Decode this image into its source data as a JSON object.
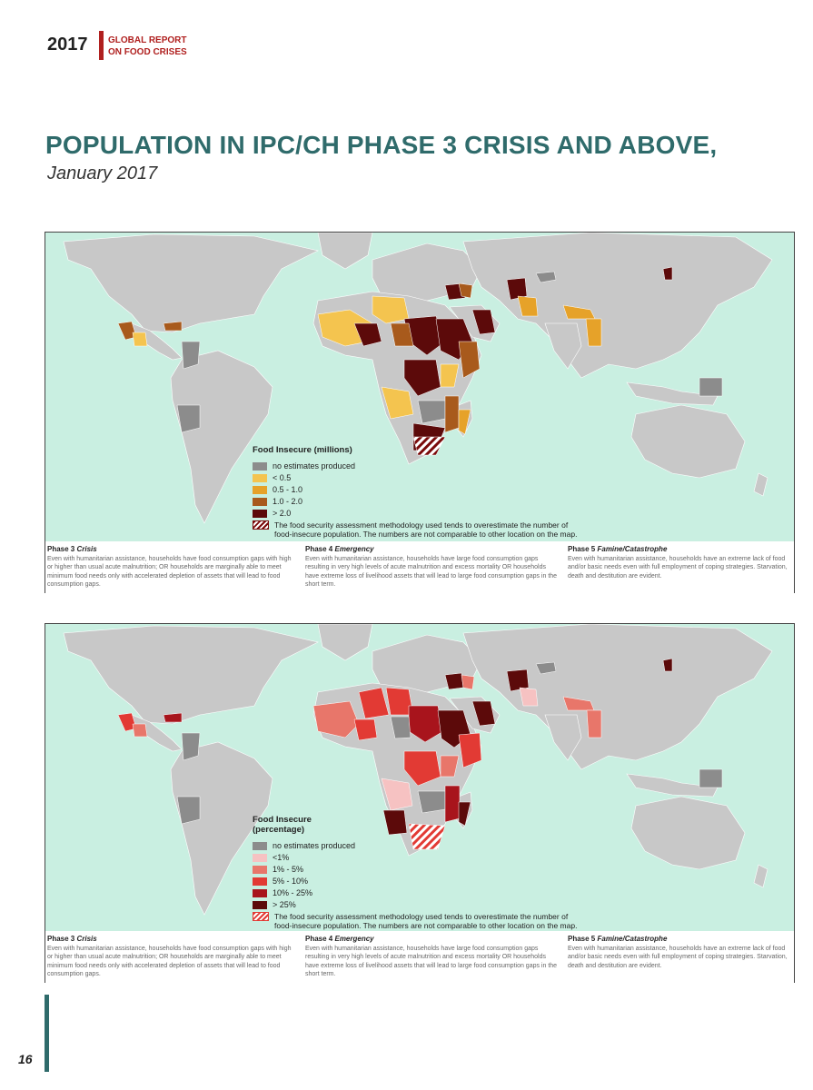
{
  "header": {
    "year": "2017",
    "report_line1": "GLOBAL REPORT",
    "report_line2": "ON FOOD CRISES"
  },
  "title": "POPULATION IN IPC/CH PHASE 3 CRISIS AND ABOVE,",
  "subtitle": "January 2017",
  "colors": {
    "ocean": "#c9efe1",
    "land": "#c8c8c8",
    "no_estimate": "#8c8c8c",
    "title_teal": "#2f6b6b",
    "accent_red": "#b0201f"
  },
  "map1": {
    "legend_title": "Food Insecure (millions)",
    "items": [
      {
        "label": "no estimates produced",
        "color": "#8c8c8c"
      },
      {
        "label": "< 0.5",
        "color": "#f4c44f"
      },
      {
        "label": "0.5 - 1.0",
        "color": "#e6a229"
      },
      {
        "label": "1.0 - 2.0",
        "color": "#a85a1c"
      },
      {
        "label": "> 2.0",
        "color": "#5c0a0a"
      }
    ],
    "note": "The food security assessment methodology used tends to overestimate the number of food-insecure population. The numbers are not comparable to other location on the map."
  },
  "map2": {
    "legend_title_line1": "Food Insecure",
    "legend_title_line2": "(percentage)",
    "items": [
      {
        "label": "no estimates produced",
        "color": "#8c8c8c"
      },
      {
        "label": "<1%",
        "color": "#f6c2c2"
      },
      {
        "label": "1% - 5%",
        "color": "#e8766a"
      },
      {
        "label": "5% - 10%",
        "color": "#e23a34"
      },
      {
        "label": "10% - 25%",
        "color": "#a8141c"
      },
      {
        "label": "> 25%",
        "color": "#5c0a0a"
      }
    ],
    "note": "The food security assessment methodology used tends to overestimate the number of food-insecure population. The numbers are not comparable to other location on the map."
  },
  "phases": {
    "p3_label": "Phase 3",
    "p3_name": "Crisis",
    "p3_text": "Even with humanitarian assistance, households have food consumption gaps with high or higher than usual acute malnutrition; OR households are marginally able to meet minimum food needs only with accelerated depletion of assets that will lead to food consumption gaps.",
    "p4_label": "Phase 4",
    "p4_name": "Emergency",
    "p4_text": "Even with humanitarian assistance, households have large food consumption gaps resulting in very high levels of acute malnutrition and excess mortality OR households have extreme loss of livelihood assets that will lead to large food consumption gaps in the short term.",
    "p5_label": "Phase 5",
    "p5_name": "Famine/Catastrophe",
    "p5_text": "Even with humanitarian assistance, households have an extreme lack of food and/or basic needs even with full employment of coping strategies. Starvation, death and destitution are evident."
  },
  "page_number": "16"
}
